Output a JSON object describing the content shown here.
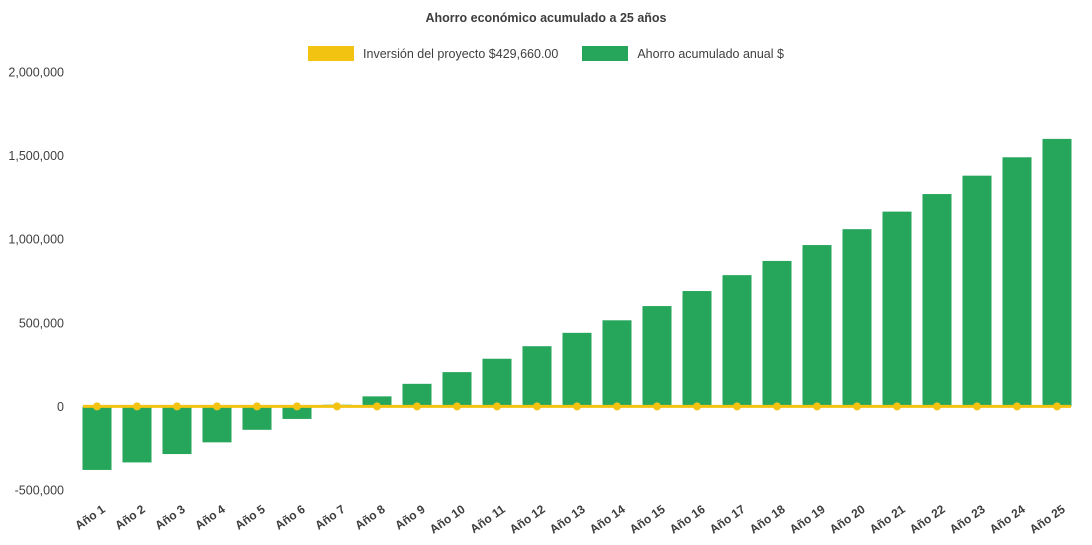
{
  "page": {
    "background": "#ffffff",
    "text_color": "#3d3d3d"
  },
  "chart_data": {
    "type": "bar",
    "title": "Ahorro económico acumulado a 25 años",
    "categories": [
      "Año 1",
      "Año 2",
      "Año 3",
      "Año 4",
      "Año 5",
      "Año 6",
      "Año 7",
      "Año 8",
      "Año 9",
      "Año 10",
      "Año 11",
      "Año 12",
      "Año 13",
      "Año 14",
      "Año 15",
      "Año 16",
      "Año 17",
      "Año 18",
      "Año 19",
      "Año 20",
      "Año 21",
      "Año 22",
      "Año 23",
      "Año 24",
      "Año 25"
    ],
    "series": [
      {
        "name": "Ahorro acumulado anual $",
        "type": "bar",
        "color": "#26a65b",
        "values": [
          -380000,
          -335000,
          -285000,
          -215000,
          -140000,
          -75000,
          10000,
          60000,
          135000,
          205000,
          285000,
          360000,
          440000,
          515000,
          600000,
          690000,
          785000,
          870000,
          965000,
          1060000,
          1165000,
          1270000,
          1380000,
          1490000,
          1600000
        ]
      },
      {
        "name": "Inversión del proyecto $429,660.00",
        "type": "line",
        "color": "#f2c311",
        "marker": "circle",
        "values": [
          0,
          0,
          0,
          0,
          0,
          0,
          0,
          0,
          0,
          0,
          0,
          0,
          0,
          0,
          0,
          0,
          0,
          0,
          0,
          0,
          0,
          0,
          0,
          0,
          0
        ]
      }
    ],
    "xlabel": "",
    "ylabel": "",
    "ylim": [
      -500000,
      2000000
    ],
    "yticks": [
      -500000,
      0,
      500000,
      1000000,
      1500000,
      2000000
    ],
    "grid": false,
    "legend_position": "top-center"
  }
}
